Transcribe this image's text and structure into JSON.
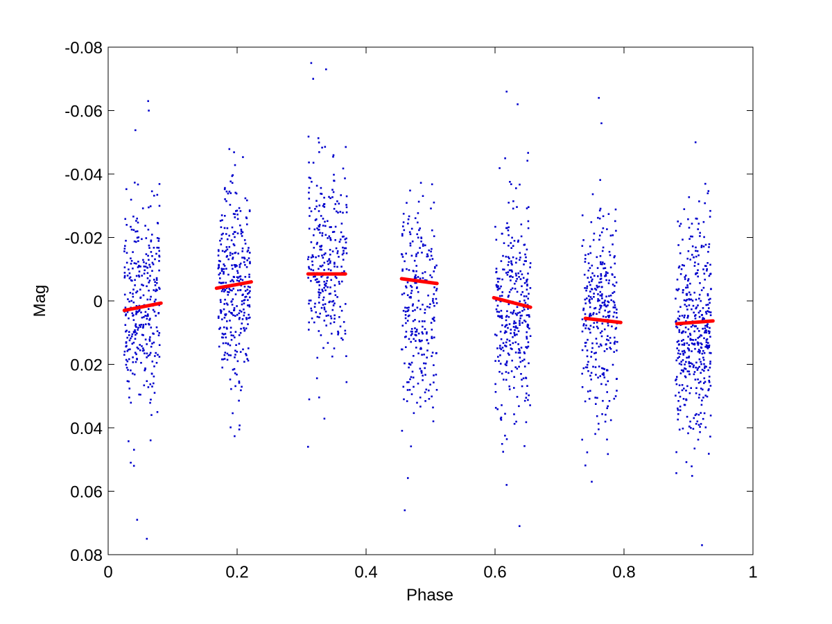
{
  "chart_data": {
    "type": "scatter",
    "title": "",
    "xlabel": "Phase",
    "ylabel": "Mag",
    "xlim": [
      0,
      1
    ],
    "ylim": [
      -0.08,
      0.08
    ],
    "y_axis_inverted": true,
    "grid": false,
    "x_ticks": [
      0,
      0.2,
      0.4,
      0.6,
      0.8,
      1
    ],
    "x_tick_labels": [
      "0",
      "0.2",
      "0.4",
      "0.6",
      "0.8",
      "1"
    ],
    "y_ticks": [
      -0.08,
      -0.06,
      -0.04,
      -0.02,
      0,
      0.02,
      0.04,
      0.06,
      0.08
    ],
    "y_tick_labels": [
      "-0.08",
      "-0.06",
      "-0.04",
      "-0.02",
      "0",
      "0.02",
      "0.04",
      "0.06",
      "0.08"
    ],
    "colors": {
      "points": "#0000cc",
      "fit": "#ff0000",
      "axes": "#000000",
      "background": "#ffffff"
    },
    "series": [
      {
        "kind": "points",
        "marker": "dot",
        "clusters": [
          {
            "phase_range": [
              0.025,
              0.08
            ],
            "center_mag": 0.001,
            "count": 320
          },
          {
            "phase_range": [
              0.17,
              0.22
            ],
            "center_mag": -0.004,
            "count": 330
          },
          {
            "phase_range": [
              0.31,
              0.37
            ],
            "center_mag": -0.012,
            "count": 280
          },
          {
            "phase_range": [
              0.455,
              0.51
            ],
            "center_mag": 0.002,
            "count": 260
          },
          {
            "phase_range": [
              0.6,
              0.655
            ],
            "center_mag": 0.002,
            "count": 320
          },
          {
            "phase_range": [
              0.735,
              0.79
            ],
            "center_mag": 0.004,
            "count": 300
          },
          {
            "phase_range": [
              0.88,
              0.935
            ],
            "center_mag": 0.01,
            "count": 420
          }
        ],
        "notable_points": [
          {
            "x": 0.315,
            "y": -0.075
          },
          {
            "x": 0.318,
            "y": -0.07
          },
          {
            "x": 0.338,
            "y": -0.073
          },
          {
            "x": 0.062,
            "y": -0.063
          },
          {
            "x": 0.063,
            "y": -0.06
          },
          {
            "x": 0.618,
            "y": -0.066
          },
          {
            "x": 0.635,
            "y": -0.062
          },
          {
            "x": 0.761,
            "y": -0.064
          },
          {
            "x": 0.765,
            "y": -0.056
          },
          {
            "x": 0.911,
            "y": -0.05
          },
          {
            "x": 0.045,
            "y": 0.069
          },
          {
            "x": 0.06,
            "y": 0.075
          },
          {
            "x": 0.46,
            "y": 0.066
          },
          {
            "x": 0.638,
            "y": 0.071
          },
          {
            "x": 0.618,
            "y": 0.058
          },
          {
            "x": 0.921,
            "y": 0.077
          },
          {
            "x": 0.75,
            "y": 0.057
          },
          {
            "x": 0.31,
            "y": 0.046
          },
          {
            "x": 0.035,
            "y": 0.051
          },
          {
            "x": 0.04,
            "y": 0.052
          }
        ]
      },
      {
        "kind": "fit",
        "segments": [
          {
            "x": [
              0.025,
              0.082
            ],
            "y": [
              0.003,
              0.0007
            ]
          },
          {
            "x": [
              0.168,
              0.222
            ],
            "y": [
              -0.004,
              -0.006
            ]
          },
          {
            "x": [
              0.31,
              0.368
            ],
            "y": [
              -0.0085,
              -0.0085
            ]
          },
          {
            "x": [
              0.455,
              0.51
            ],
            "y": [
              -0.007,
              -0.0055
            ]
          },
          {
            "x": [
              0.598,
              0.655
            ],
            "y": [
              -0.001,
              0.002
            ]
          },
          {
            "x": [
              0.74,
              0.795
            ],
            "y": [
              0.0055,
              0.0068
            ]
          },
          {
            "x": [
              0.882,
              0.938
            ],
            "y": [
              0.0072,
              0.0063
            ]
          }
        ]
      }
    ]
  }
}
